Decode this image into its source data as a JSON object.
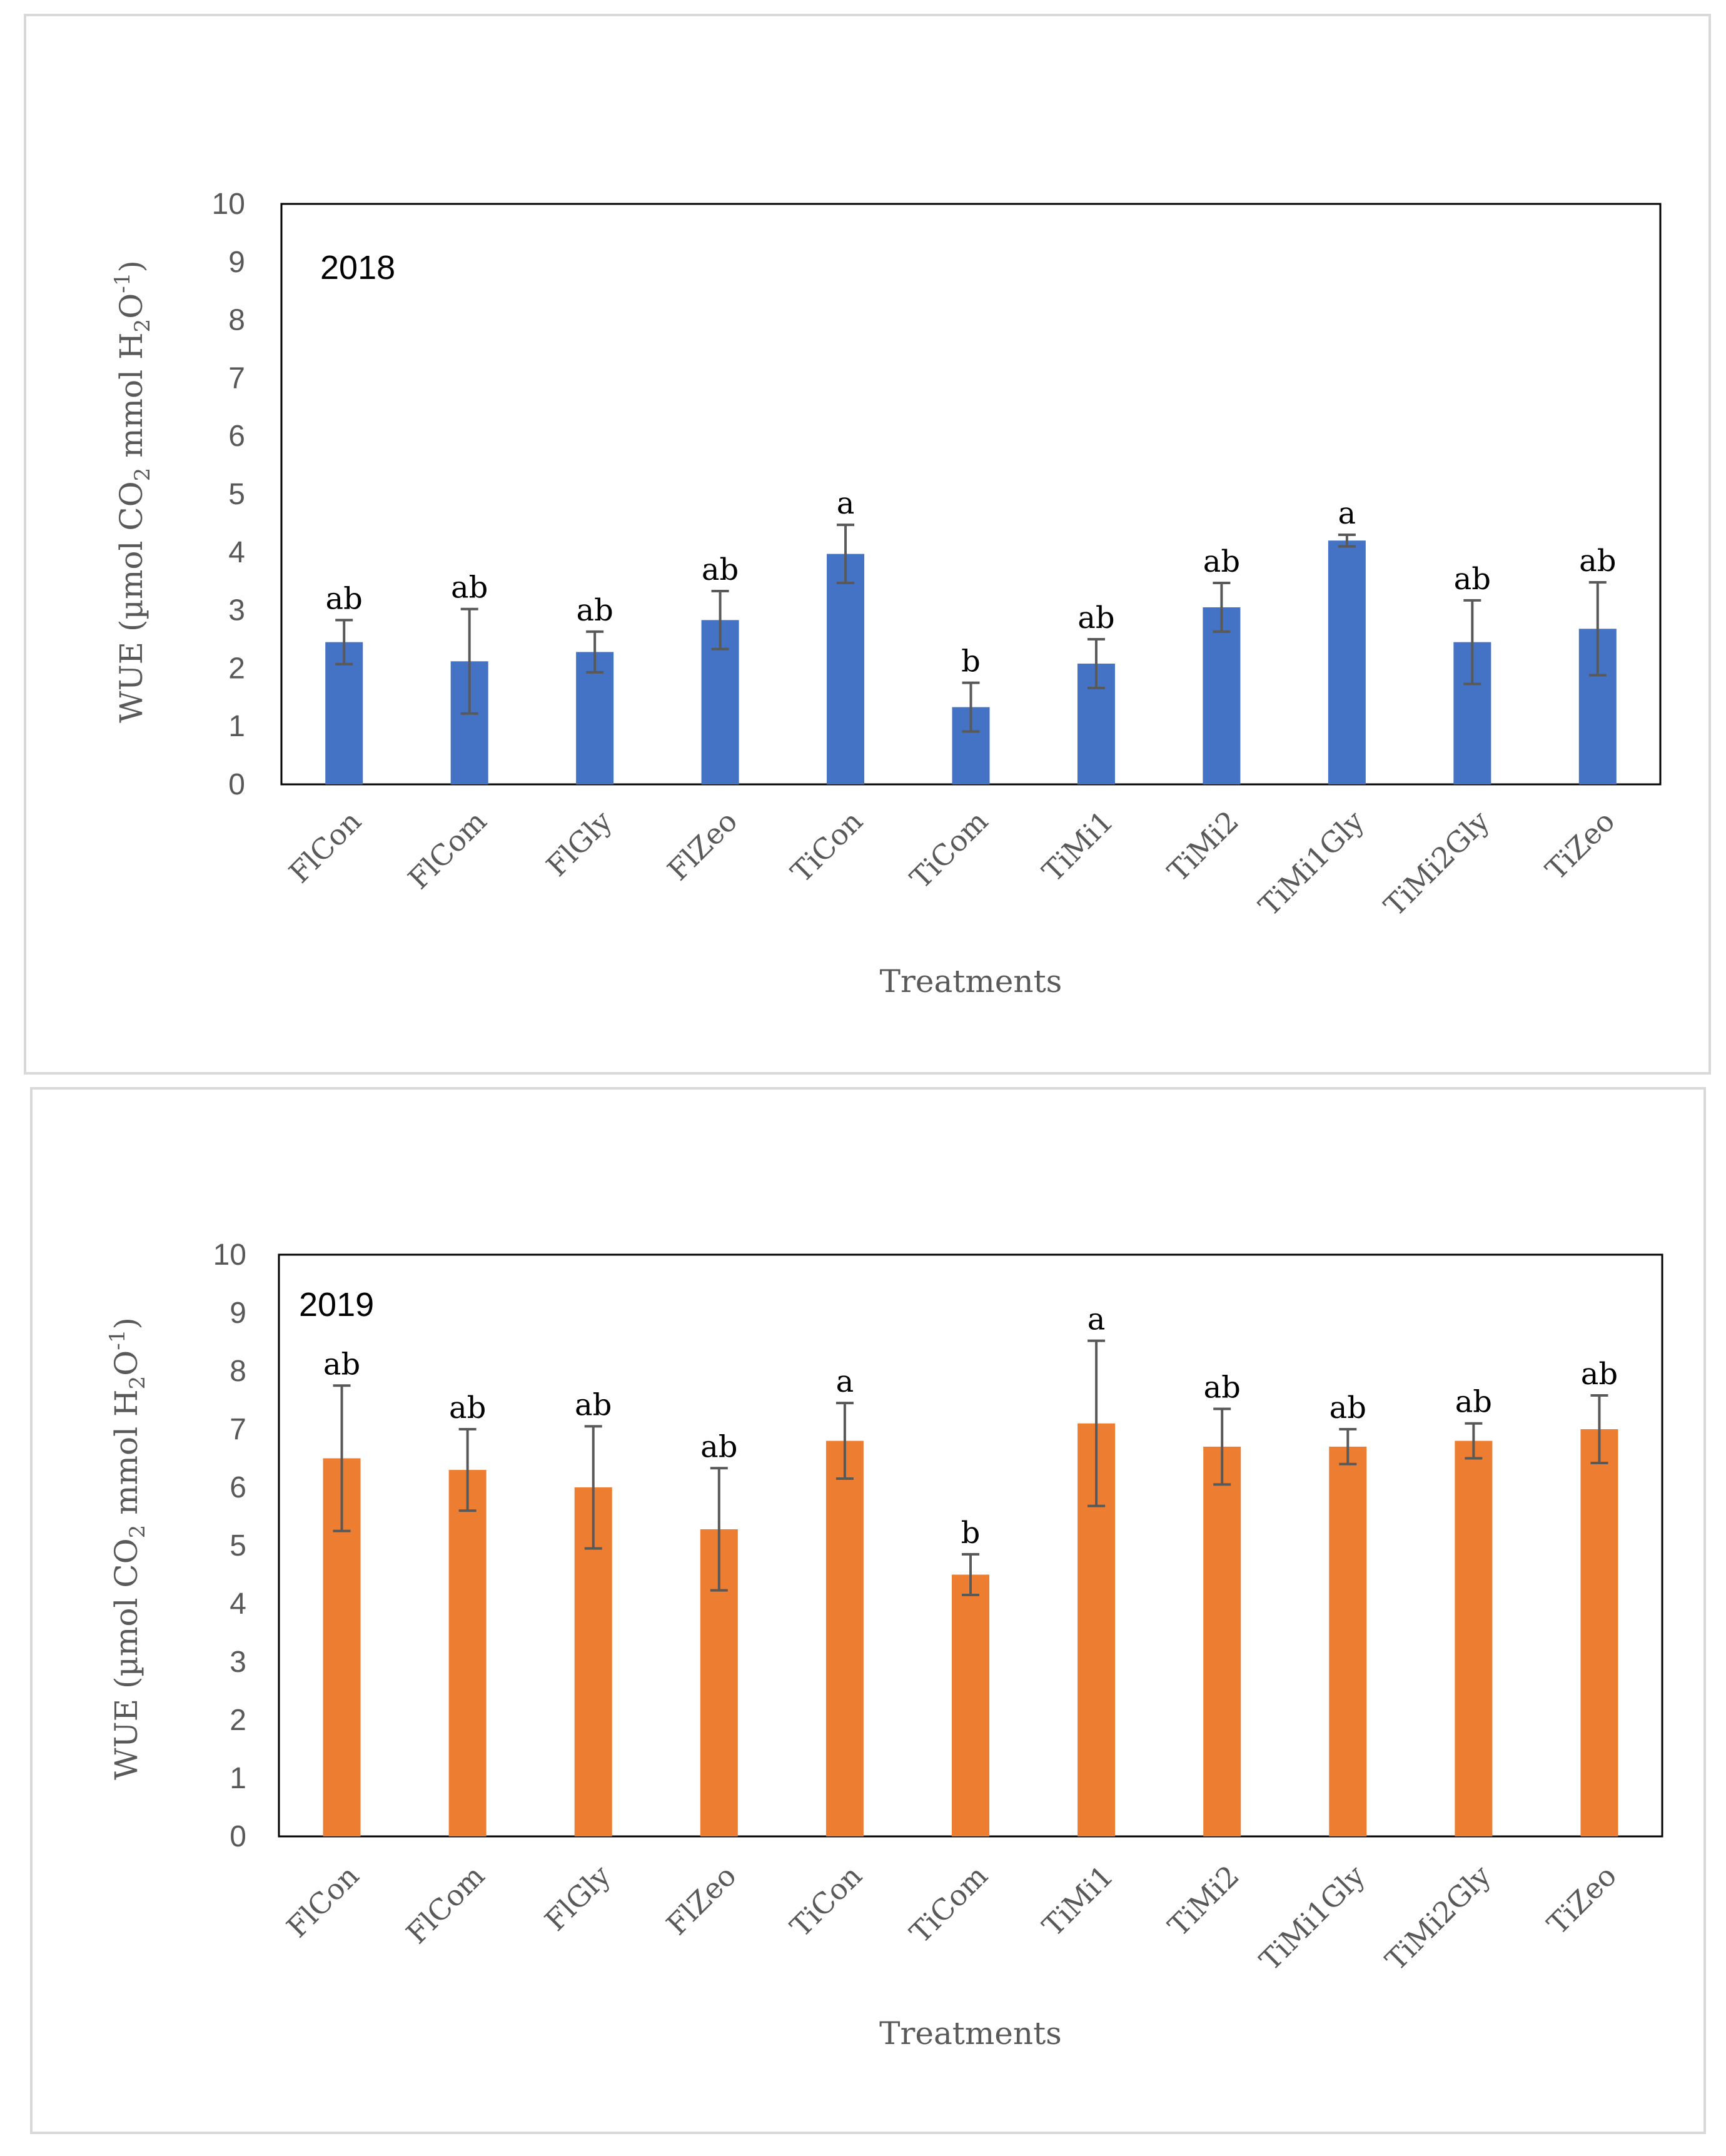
{
  "chart_data": [
    {
      "type": "bar",
      "panel": "2018",
      "annotation": "2018",
      "categories": [
        "FlCon",
        "FlCom",
        "FlGly",
        "FlZeo",
        "TiCon",
        "TiCom",
        "TiMi1",
        "TiMi2",
        "TiMi1Gly",
        "TiMi2Gly",
        "TiZeo"
      ],
      "values": [
        2.45,
        2.12,
        2.28,
        2.83,
        3.97,
        1.33,
        2.08,
        3.05,
        4.2,
        2.45,
        2.68
      ],
      "errors": [
        0.38,
        0.9,
        0.35,
        0.5,
        0.5,
        0.42,
        0.42,
        0.42,
        0.1,
        0.72,
        0.8
      ],
      "letters": [
        "ab",
        "ab",
        "ab",
        "ab",
        "a",
        "b",
        "ab",
        "ab",
        "a",
        "ab",
        "ab"
      ],
      "xlabel": "Treatments",
      "ylabel": "WUE (µmol CO2 mmol H2O-1)",
      "ylim": [
        0,
        10
      ],
      "yticks": [
        "0",
        "1",
        "2",
        "3",
        "4",
        "5",
        "6",
        "7",
        "8",
        "9",
        "10"
      ],
      "color": "#4472c4",
      "grid": false
    },
    {
      "type": "bar",
      "panel": "2019",
      "annotation": "2019",
      "categories": [
        "FlCon",
        "FlCom",
        "FlGly",
        "FlZeo",
        "TiCon",
        "TiCom",
        "TiMi1",
        "TiMi2",
        "TiMi1Gly",
        "TiMi2Gly",
        "TiZeo"
      ],
      "values": [
        6.5,
        6.3,
        6.0,
        5.28,
        6.8,
        4.5,
        7.1,
        6.7,
        6.7,
        6.8,
        7.0
      ],
      "errors": [
        1.25,
        0.7,
        1.05,
        1.05,
        0.65,
        0.35,
        1.42,
        0.65,
        0.3,
        0.3,
        0.58
      ],
      "letters": [
        "ab",
        "ab",
        "ab",
        "ab",
        "a",
        "b",
        "a",
        "ab",
        "ab",
        "ab",
        "ab"
      ],
      "xlabel": "Treatments",
      "ylabel": "WUE (µmol CO2 mmol H2O-1)",
      "ylim": [
        0,
        10
      ],
      "yticks": [
        "0",
        "1",
        "2",
        "3",
        "4",
        "5",
        "6",
        "7",
        "8",
        "9",
        "10"
      ],
      "color": "#ed7d31",
      "grid": false
    }
  ],
  "ylabel_parts": {
    "pre": "WUE (µmol CO",
    "sub1": "2",
    "mid": " mmol H",
    "sub2": "2",
    "mid2": "O",
    "sup": "-1",
    "post": ")"
  }
}
